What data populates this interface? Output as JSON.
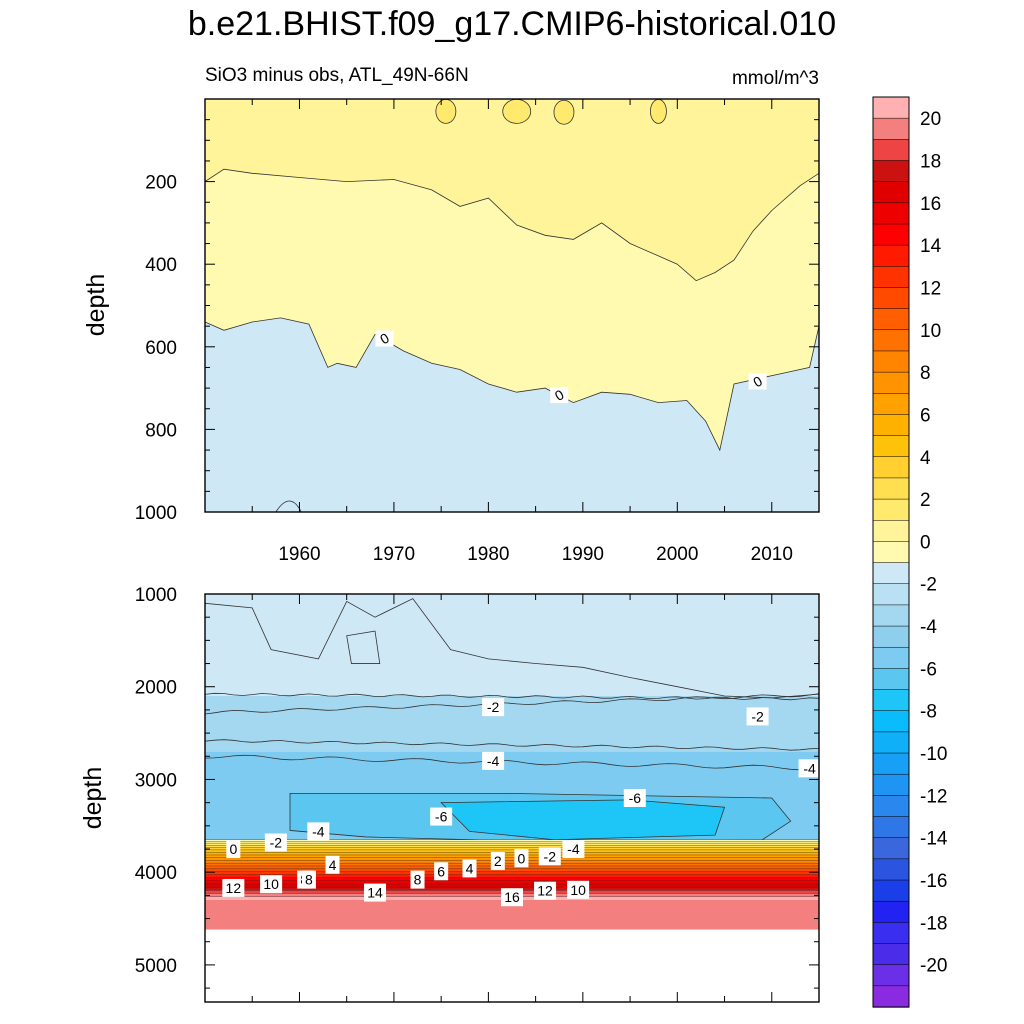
{
  "title": "b.e21.BHIST.f09_g17.CMIP6-historical.010",
  "chart_data": [
    {
      "type": "heatmap",
      "panel": "upper",
      "subtitle_left": "SiO3 minus obs, ATL_49N-66N",
      "subtitle_right": "mmol/m^3",
      "xlabel": "",
      "ylabel": "depth",
      "xlim": [
        1950,
        2015
      ],
      "ylim": [
        1000,
        0
      ],
      "x_ticks": [
        "1960",
        "1970",
        "1980",
        "1990",
        "2000",
        "2010"
      ],
      "y_ticks": [
        "200",
        "400",
        "600",
        "800",
        "1000"
      ],
      "contour_labels": [
        "0",
        "0",
        "0"
      ],
      "zero_contour_depth": {
        "x": [
          1950,
          1952,
          1955,
          1958,
          1961,
          1963,
          1964,
          1966,
          1968,
          1971,
          1974,
          1977,
          1980,
          1983,
          1986,
          1989,
          1992,
          1995,
          1998,
          2001,
          2003,
          2004.5,
          2006,
          2008,
          2011,
          2014,
          2015
        ],
        "depth": [
          540,
          560,
          540,
          530,
          545,
          650,
          640,
          650,
          570,
          610,
          640,
          655,
          690,
          710,
          700,
          735,
          710,
          715,
          735,
          730,
          780,
          850,
          690,
          680,
          665,
          650,
          550
        ]
      },
      "band_0_2_bottom_depth": {
        "x": [
          1950,
          1952,
          1955,
          1960,
          1965,
          1970,
          1974,
          1977,
          1980,
          1983,
          1986,
          1989,
          1992,
          1995,
          1998,
          2000,
          2002,
          2004,
          2006,
          2008,
          2010,
          2013,
          2015
        ],
        "depth": [
          200,
          170,
          180,
          190,
          200,
          195,
          220,
          260,
          240,
          305,
          330,
          340,
          300,
          350,
          380,
          400,
          440,
          420,
          390,
          320,
          270,
          210,
          180
        ]
      },
      "values_range": "about -1 to 2 (mostly 0 to 2 above the zero contour, 0 to -2 below)"
    },
    {
      "type": "heatmap",
      "panel": "lower",
      "xlabel": "",
      "ylabel": "depth",
      "xlim": [
        1950,
        2015
      ],
      "ylim": [
        5400,
        1000
      ],
      "y_ticks": [
        "1000",
        "2000",
        "3000",
        "4000",
        "5000"
      ],
      "contour_labels": [
        "-2",
        "-2",
        "-4",
        "-4",
        "-6",
        "-6",
        "-4",
        "0",
        "-2",
        "4",
        "8",
        "2",
        "4",
        "6",
        "0",
        "-2",
        "-4",
        "12",
        "10",
        "8",
        "14",
        "8",
        "16",
        "12",
        "10"
      ],
      "layers": [
        {
          "value_range": [
            0,
            -2
          ],
          "depth_top": 1000,
          "depth_bottom": 2100
        },
        {
          "value_range": [
            -2,
            -4
          ],
          "depth_top": 2100,
          "depth_bottom": 2700
        },
        {
          "value_range": [
            -4,
            -6
          ],
          "depth_top": 2700,
          "depth_bottom": 3500
        },
        {
          "value_range": [
            -6,
            -7
          ],
          "depth_top": 3150,
          "depth_bottom": 3650
        },
        {
          "value_range": [
            0,
            20
          ],
          "depth_top": 3650,
          "depth_bottom": 4300
        },
        {
          "value_range": [
            20,
            21
          ],
          "depth_top": 4300,
          "depth_bottom": 4620
        }
      ]
    }
  ],
  "colorbar": {
    "levels": [
      -21,
      -20,
      -19,
      -18,
      -17,
      -16,
      -15,
      -14,
      -13,
      -12,
      -11,
      -10,
      -9,
      -8,
      -7,
      -6,
      -5,
      -4,
      -3,
      -2,
      -1,
      0,
      1,
      2,
      3,
      4,
      5,
      6,
      7,
      8,
      9,
      10,
      11,
      12,
      13,
      14,
      15,
      16,
      17,
      18,
      19,
      20,
      21
    ],
    "colors": [
      "#8a2be2",
      "#6a2fe6",
      "#4b2ce8",
      "#3a2ff0",
      "#2222f2",
      "#1a3fe8",
      "#2b55e0",
      "#3a67dc",
      "#2f77e6",
      "#2a87ee",
      "#1f95f3",
      "#17a0f5",
      "#0fb0f8",
      "#0bbcfa",
      "#1ec6f7",
      "#5bc6f0",
      "#7dcbf0",
      "#8fcfee",
      "#a4d8f0",
      "#b9e0f3",
      "#cfe8f6",
      "#fffab0",
      "#fff49a",
      "#ffea6e",
      "#ffde50",
      "#ffd030",
      "#ffc20a",
      "#ffb100",
      "#ffa200",
      "#ff9300",
      "#ff8400",
      "#ff7200",
      "#ff5f00",
      "#ff4a00",
      "#ff3200",
      "#ff1a00",
      "#ff0000",
      "#ef0000",
      "#e00000",
      "#cc1111",
      "#ee4444",
      "#f37f7f",
      "#ffb0b0"
    ],
    "tick_labels": [
      "20",
      "18",
      "16",
      "14",
      "12",
      "10",
      "8",
      "6",
      "4",
      "2",
      "0",
      "-2",
      "-4",
      "-6",
      "-8",
      "-10",
      "-12",
      "-14",
      "-16",
      "-18",
      "-20"
    ]
  }
}
